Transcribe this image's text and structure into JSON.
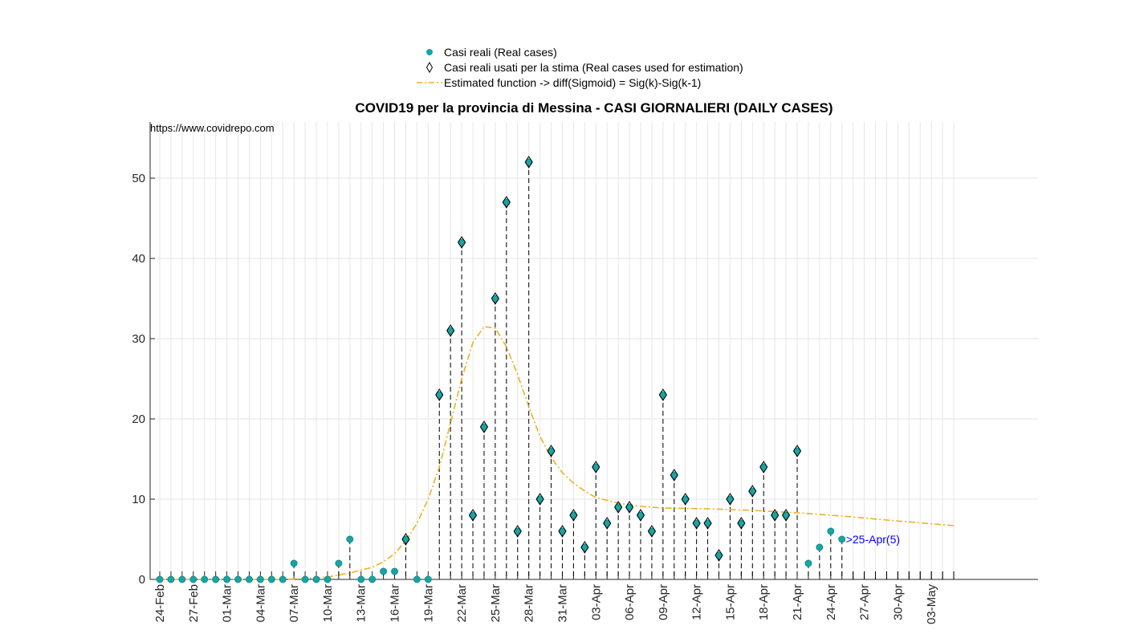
{
  "chart_data": {
    "type": "scatter",
    "title": "COVID19 per la provincia di Messina - CASI GIORNALIERI (DAILY CASES)",
    "source_note": "https://www.covidrepo.com",
    "legend": [
      {
        "label": "Casi reali (Real cases)",
        "marker": "filled-circle",
        "color": "#1aa3a3"
      },
      {
        "label": "Casi reali usati per la stima (Real cases used for estimation)",
        "marker": "diamond",
        "color": "#000000"
      },
      {
        "label": "Estimated function -> diff(Sigmoid) = Sig(k)-Sig(k-1)",
        "marker": "dash-dot-line",
        "color": "#edb120"
      }
    ],
    "legend_position": "top-center",
    "grid": true,
    "ylim": [
      0,
      57
    ],
    "yticks": [
      0,
      10,
      20,
      30,
      40,
      50
    ],
    "xlabel": "",
    "ylabel": "",
    "x_start": "24-Feb",
    "x_end": "05-May",
    "xtick_labels": [
      "24-Feb",
      "27-Feb",
      "01-Mar",
      "04-Mar",
      "07-Mar",
      "10-Mar",
      "13-Mar",
      "16-Mar",
      "19-Mar",
      "22-Mar",
      "25-Mar",
      "28-Mar",
      "31-Mar",
      "03-Apr",
      "06-Apr",
      "09-Apr",
      "12-Apr",
      "15-Apr",
      "18-Apr",
      "21-Apr",
      "24-Apr",
      "27-Apr",
      "30-Apr",
      "03-May"
    ],
    "series": [
      {
        "name": "Casi reali (Real cases)",
        "dates": [
          "24-Feb",
          "25-Feb",
          "26-Feb",
          "27-Feb",
          "28-Feb",
          "29-Feb",
          "01-Mar",
          "02-Mar",
          "03-Mar",
          "04-Mar",
          "05-Mar",
          "06-Mar",
          "07-Mar",
          "08-Mar",
          "09-Mar",
          "10-Mar",
          "11-Mar",
          "12-Mar",
          "13-Mar",
          "14-Mar",
          "15-Mar",
          "16-Mar",
          "17-Mar",
          "18-Mar",
          "19-Mar",
          "20-Mar",
          "21-Mar",
          "22-Mar",
          "23-Mar",
          "24-Mar",
          "25-Mar",
          "26-Mar",
          "27-Mar",
          "28-Mar",
          "29-Mar",
          "30-Mar",
          "31-Mar",
          "01-Apr",
          "02-Apr",
          "03-Apr",
          "04-Apr",
          "05-Apr",
          "06-Apr",
          "07-Apr",
          "08-Apr",
          "09-Apr",
          "10-Apr",
          "11-Apr",
          "12-Apr",
          "13-Apr",
          "14-Apr",
          "15-Apr",
          "16-Apr",
          "17-Apr",
          "18-Apr",
          "19-Apr",
          "20-Apr",
          "21-Apr",
          "22-Apr",
          "23-Apr",
          "24-Apr",
          "25-Apr"
        ],
        "values": [
          0,
          0,
          0,
          0,
          0,
          0,
          0,
          0,
          0,
          0,
          0,
          0,
          2,
          0,
          0,
          0,
          2,
          5,
          0,
          0,
          1,
          1,
          5,
          0,
          0,
          23,
          31,
          42,
          8,
          19,
          35,
          47,
          6,
          52,
          10,
          16,
          6,
          8,
          4,
          14,
          7,
          9,
          9,
          8,
          6,
          23,
          13,
          10,
          7,
          7,
          3,
          10,
          7,
          11,
          14,
          8,
          8,
          16,
          2,
          4,
          6,
          5
        ]
      },
      {
        "name": "Casi reali usati per la stima (Real cases used for estimation)",
        "dates": [
          "17-Mar",
          "20-Mar",
          "21-Mar",
          "22-Mar",
          "23-Mar",
          "24-Mar",
          "25-Mar",
          "26-Mar",
          "27-Mar",
          "28-Mar",
          "29-Mar",
          "30-Mar",
          "31-Mar",
          "01-Apr",
          "02-Apr",
          "03-Apr",
          "04-Apr",
          "05-Apr",
          "06-Apr",
          "07-Apr",
          "08-Apr",
          "09-Apr",
          "10-Apr",
          "11-Apr",
          "12-Apr",
          "13-Apr",
          "14-Apr",
          "15-Apr",
          "16-Apr",
          "17-Apr",
          "18-Apr",
          "19-Apr",
          "20-Apr",
          "21-Apr"
        ],
        "values": [
          5,
          23,
          31,
          42,
          8,
          19,
          35,
          47,
          6,
          52,
          10,
          16,
          6,
          8,
          4,
          14,
          7,
          9,
          9,
          8,
          6,
          23,
          13,
          10,
          7,
          7,
          3,
          10,
          7,
          11,
          14,
          8,
          8,
          16
        ]
      },
      {
        "name": "Estimated function -> diff(Sigmoid) = Sig(k)-Sig(k-1)",
        "dates": [
          "24-Feb",
          "06-Mar",
          "08-Mar",
          "10-Mar",
          "12-Mar",
          "14-Mar",
          "15-Mar",
          "16-Mar",
          "17-Mar",
          "18-Mar",
          "19-Mar",
          "20-Mar",
          "21-Mar",
          "22-Mar",
          "23-Mar",
          "24-Mar",
          "25-Mar",
          "26-Mar",
          "27-Mar",
          "28-Mar",
          "29-Mar",
          "30-Mar",
          "31-Mar",
          "01-Apr",
          "02-Apr",
          "03-Apr",
          "05-Apr",
          "07-Apr",
          "09-Apr",
          "13-Apr",
          "17-Apr",
          "21-Apr",
          "25-Apr",
          "29-Apr",
          "05-May"
        ],
        "values": [
          0,
          0,
          0.1,
          0.3,
          0.8,
          1.5,
          2.2,
          3.2,
          4.8,
          7,
          10,
          14,
          19.5,
          25,
          29.5,
          31.5,
          31.3,
          29,
          25.5,
          21.5,
          17.8,
          15.2,
          13.3,
          12,
          11,
          10.2,
          9.5,
          9.1,
          8.9,
          8.8,
          8.6,
          8.3,
          7.9,
          7.4,
          6.7
        ]
      }
    ],
    "annotation": ">25-Apr(5)"
  }
}
